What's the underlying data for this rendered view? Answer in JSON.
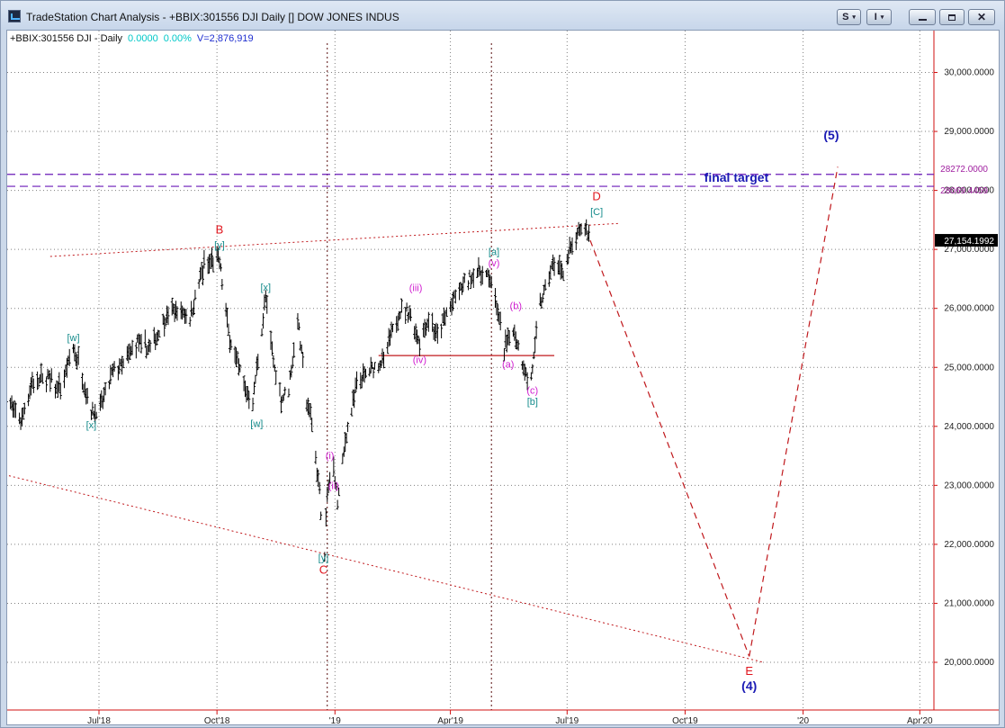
{
  "window": {
    "title": "TradeStation Chart Analysis - +BBIX:301556 DJI Daily [] DOW JONES INDUS",
    "buttons": {
      "s_label": "S",
      "i_label": "I",
      "caret": "▾",
      "close": "✕"
    },
    "colors": {
      "titlebar": "#c7d6ea",
      "frame": "#ccd9ea"
    }
  },
  "info_line": {
    "symbol": "+BBIX:301556 DJI - Daily",
    "change": "0.0000",
    "change_pct": "0.00%",
    "volume": "V=2,876,919"
  },
  "colors": {
    "price_bars": "#000000",
    "red_labels": "#e0141c",
    "teal_labels": "#168c8c",
    "magenta_labels": "#d01ed0",
    "blue_labels": "#1a1ab4",
    "target_lines": "#6a1ab8",
    "trendlines": "#c0181c",
    "grid": "#808080",
    "axis_line": "#d01010"
  },
  "chart_data": {
    "type": "line",
    "title": "",
    "xlabel": "",
    "ylabel": "",
    "ylim": [
      19300,
      30700
    ],
    "x_tick_labels": [
      "Jul'18",
      "Oct'18",
      "'19",
      "Apr'19",
      "Jul'19",
      "Oct'19",
      "'20",
      "Apr'20"
    ],
    "x_tick_dates": [
      "2018-07-01",
      "2018-10-01",
      "2019-01-01",
      "2019-04-01",
      "2019-07-01",
      "2019-10-01",
      "2020-01-01",
      "2020-04-01"
    ],
    "y_ticks": [
      20000,
      21000,
      22000,
      23000,
      24000,
      25000,
      26000,
      27000,
      28000,
      29000,
      30000
    ],
    "y_tick_labels": [
      "20,000.0000",
      "21,000.0000",
      "22,000.0000",
      "23,000.0000",
      "24,000.0000",
      "25,000.0000",
      "26,000.0000",
      "27,000.0000",
      "28,000.0000",
      "29,000.0000",
      "30,000.0000"
    ],
    "grid": true,
    "last_price": 27154.1992,
    "last_price_label": "27,154.1992",
    "series": [
      {
        "style": "ohlc-bars",
        "points": [
          [
            "2018-04-20",
            24460
          ],
          [
            "2018-05-01",
            24100
          ],
          [
            "2018-05-10",
            24740
          ],
          [
            "2018-05-22",
            24830
          ],
          [
            "2018-06-01",
            24600
          ],
          [
            "2018-06-11",
            25320
          ],
          [
            "2018-06-15",
            25090
          ],
          [
            "2018-06-25",
            24250
          ],
          [
            "2018-07-02",
            24300
          ],
          [
            "2018-07-12",
            24920
          ],
          [
            "2018-07-20",
            25060
          ],
          [
            "2018-07-31",
            25410
          ],
          [
            "2018-08-10",
            25310
          ],
          [
            "2018-08-21",
            25820
          ],
          [
            "2018-08-30",
            25980
          ],
          [
            "2018-09-10",
            25860
          ],
          [
            "2018-09-21",
            26740
          ],
          [
            "2018-10-03",
            26820
          ],
          [
            "2018-10-10",
            25600
          ],
          [
            "2018-10-15",
            25250
          ],
          [
            "2018-10-24",
            24580
          ],
          [
            "2018-10-29",
            24440
          ],
          [
            "2018-11-08",
            26190
          ],
          [
            "2018-11-14",
            25080
          ],
          [
            "2018-11-20",
            24460
          ],
          [
            "2018-11-26",
            24640
          ],
          [
            "2018-12-03",
            25830
          ],
          [
            "2018-12-10",
            24420
          ],
          [
            "2018-12-14",
            24100
          ],
          [
            "2018-12-20",
            22860
          ],
          [
            "2018-12-24",
            21790
          ],
          [
            "2018-12-26",
            22880
          ],
          [
            "2018-12-31",
            23330
          ],
          [
            "2019-01-03",
            22690
          ],
          [
            "2019-01-10",
            23880
          ],
          [
            "2019-01-18",
            24700
          ],
          [
            "2019-01-31",
            24990
          ],
          [
            "2019-02-08",
            25110
          ],
          [
            "2019-02-20",
            25950
          ],
          [
            "2019-02-28",
            25920
          ],
          [
            "2019-03-08",
            25450
          ],
          [
            "2019-03-15",
            25850
          ],
          [
            "2019-03-22",
            25500
          ],
          [
            "2019-03-29",
            25930
          ],
          [
            "2019-04-12",
            26410
          ],
          [
            "2019-04-23",
            26650
          ],
          [
            "2019-05-03",
            26500
          ],
          [
            "2019-05-13",
            25320
          ],
          [
            "2019-05-20",
            25680
          ],
          [
            "2019-05-31",
            24820
          ],
          [
            "2019-06-03",
            24820
          ],
          [
            "2019-06-10",
            26060
          ],
          [
            "2019-06-20",
            26750
          ],
          [
            "2019-06-28",
            26600
          ],
          [
            "2019-07-03",
            26970
          ],
          [
            "2019-07-12",
            27330
          ],
          [
            "2019-07-16",
            27340
          ],
          [
            "2019-07-19",
            27154
          ]
        ]
      },
      {
        "name": "wave-projection",
        "style": "dashed",
        "points": [
          [
            "2019-07-19",
            27154
          ],
          [
            "2019-11-20",
            20100
          ],
          [
            "2020-01-28",
            28400
          ]
        ]
      }
    ],
    "horizontal_lines": [
      {
        "value": 28272.0,
        "label": "28272.0000",
        "style": "dashed"
      },
      {
        "value": 28069.4459,
        "label": "28069.4459",
        "style": "dashed"
      },
      {
        "value": 25200,
        "style": "solid",
        "x_start": "2019-02-04",
        "x_end": "2019-06-21"
      }
    ],
    "vertical_lines": [
      "2018-12-26",
      "2019-05-03"
    ],
    "trendlines": [
      {
        "from": [
          "2018-05-24",
          26880
        ],
        "to": [
          "2019-08-10",
          27440
        ]
      },
      {
        "from": [
          "2018-04-15",
          23200
        ],
        "to": [
          "2019-12-01",
          20000
        ]
      }
    ],
    "annotations": [
      {
        "text": "B",
        "x": "2018-10-03",
        "y": 27270,
        "color": "red"
      },
      {
        "text": "[y]",
        "x": "2018-10-03",
        "y": 27020,
        "color": "teal"
      },
      {
        "text": "[w]",
        "x": "2018-06-11",
        "y": 25450,
        "color": "teal"
      },
      {
        "text": "[x]",
        "x": "2018-06-25",
        "y": 23970,
        "color": "teal"
      },
      {
        "text": "[x]",
        "x": "2018-11-08",
        "y": 26300,
        "color": "teal"
      },
      {
        "text": "[w]",
        "x": "2018-11-01",
        "y": 23990,
        "color": "teal"
      },
      {
        "text": "[y]",
        "x": "2018-12-23",
        "y": 21720,
        "color": "teal"
      },
      {
        "text": "C",
        "x": "2018-12-23",
        "y": 21500,
        "color": "red"
      },
      {
        "text": "(i)",
        "x": "2018-12-28",
        "y": 23450,
        "color": "magenta"
      },
      {
        "text": "(ii)",
        "x": "2018-12-31",
        "y": 22940,
        "color": "magenta"
      },
      {
        "text": "(iii)",
        "x": "2019-03-05",
        "y": 26290,
        "color": "magenta"
      },
      {
        "text": "(iv)",
        "x": "2019-03-08",
        "y": 25070,
        "color": "magenta"
      },
      {
        "text": "[a]",
        "x": "2019-05-05",
        "y": 26900,
        "color": "teal"
      },
      {
        "text": "(v)",
        "x": "2019-05-05",
        "y": 26710,
        "color": "magenta"
      },
      {
        "text": "(b)",
        "x": "2019-05-22",
        "y": 25990,
        "color": "magenta"
      },
      {
        "text": "(a)",
        "x": "2019-05-16",
        "y": 25000,
        "color": "magenta"
      },
      {
        "text": "(c)",
        "x": "2019-06-04",
        "y": 24550,
        "color": "magenta"
      },
      {
        "text": "[b]",
        "x": "2019-06-04",
        "y": 24360,
        "color": "teal"
      },
      {
        "text": "D",
        "x": "2019-07-24",
        "y": 27830,
        "color": "red"
      },
      {
        "text": "[C]",
        "x": "2019-07-24",
        "y": 27580,
        "color": "teal"
      },
      {
        "text": "final target",
        "x": "2019-11-10",
        "y": 28150,
        "color": "blue"
      },
      {
        "text": "(5)",
        "x": "2020-01-23",
        "y": 28860,
        "color": "blue"
      },
      {
        "text": "E",
        "x": "2019-11-20",
        "y": 19790,
        "color": "red"
      },
      {
        "text": "(4)",
        "x": "2019-11-20",
        "y": 19530,
        "color": "blue"
      }
    ]
  }
}
